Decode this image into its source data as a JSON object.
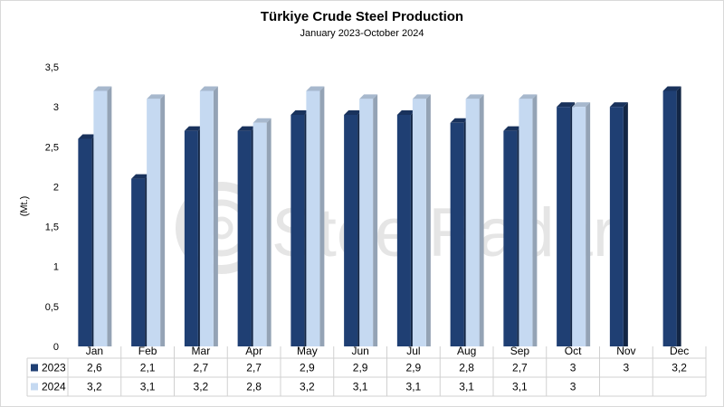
{
  "chart_data": {
    "type": "bar",
    "title": "Türkiye Crude Steel Production",
    "subtitle": "January 2023-October 2024",
    "ylabel": "(Mt.)",
    "ylim": [
      0,
      3.5
    ],
    "y_ticks": [
      "0",
      "0,5",
      "1",
      "1,5",
      "2",
      "2,5",
      "3",
      "3,5"
    ],
    "categories": [
      "Jan",
      "Feb",
      "Mar",
      "Apr",
      "May",
      "Jun",
      "Jul",
      "Aug",
      "Sep",
      "Oct",
      "Nov",
      "Dec"
    ],
    "series": [
      {
        "name": "2023",
        "color": "#1f3f73",
        "values": [
          2.6,
          2.1,
          2.7,
          2.7,
          2.9,
          2.9,
          2.9,
          2.8,
          2.7,
          3,
          3,
          3.2
        ],
        "labels": [
          "2,6",
          "2,1",
          "2,7",
          "2,7",
          "2,9",
          "2,9",
          "2,9",
          "2,8",
          "2,7",
          "3",
          "3",
          "3,2"
        ]
      },
      {
        "name": "2024",
        "color": "#c5d9f1",
        "values": [
          3.2,
          3.1,
          3.2,
          2.8,
          3.2,
          3.1,
          3.1,
          3.1,
          3.1,
          3,
          null,
          null
        ],
        "labels": [
          "3,2",
          "3,1",
          "3,2",
          "2,8",
          "3,2",
          "3,1",
          "3,1",
          "3,1",
          "3,1",
          "3",
          "",
          ""
        ]
      }
    ],
    "grid": false,
    "data_table": true
  },
  "watermark": {
    "text": "SteelRadar"
  }
}
